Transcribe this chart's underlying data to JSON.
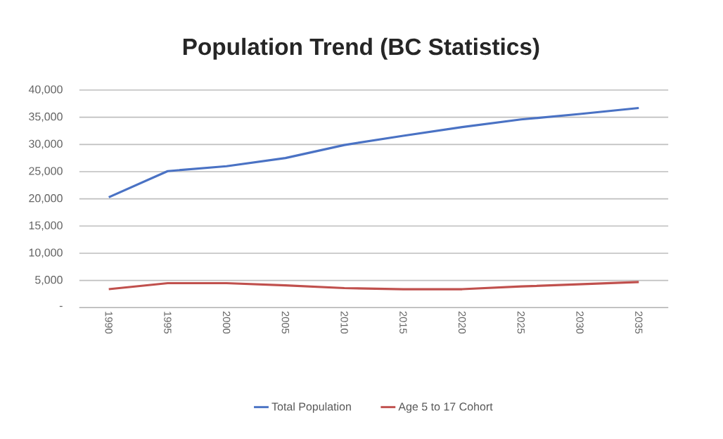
{
  "chart_data": {
    "type": "line",
    "title": "Population Trend (BC Statistics)",
    "categories": [
      "1990",
      "1995",
      "2000",
      "2005",
      "2010",
      "2015",
      "2020",
      "2025",
      "2030",
      "2035"
    ],
    "series": [
      {
        "name": "Total Population",
        "color": "#4a72c4",
        "values": [
          20300,
          25100,
          26000,
          27500,
          29900,
          31600,
          33200,
          34600,
          35600,
          36700
        ]
      },
      {
        "name": "Age 5 to 17 Cohort",
        "color": "#c0504d",
        "values": [
          3400,
          4500,
          4500,
          4100,
          3600,
          3400,
          3400,
          3900,
          4300,
          4700
        ]
      }
    ],
    "ylim": [
      0,
      40000
    ],
    "yticks": [
      {
        "value": 0,
        "label": "-"
      },
      {
        "value": 5000,
        "label": "5,000"
      },
      {
        "value": 10000,
        "label": "10,000"
      },
      {
        "value": 15000,
        "label": "15,000"
      },
      {
        "value": 20000,
        "label": "20,000"
      },
      {
        "value": 25000,
        "label": "25,000"
      },
      {
        "value": 30000,
        "label": "30,000"
      },
      {
        "value": 35000,
        "label": "35,000"
      },
      {
        "value": 40000,
        "label": "40,000"
      }
    ],
    "grid": "y",
    "legend": "bottom"
  }
}
